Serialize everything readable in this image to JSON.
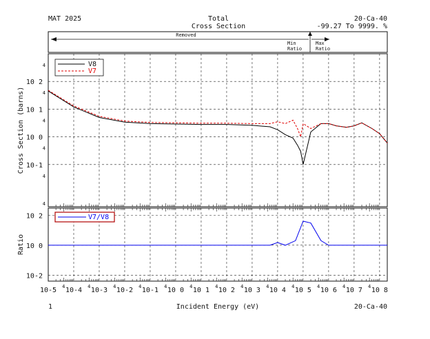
{
  "header": {
    "mat": "MAT 2025",
    "title_line1": "Total",
    "title_line2": "Cross Section",
    "nuclide": "20-Ca-40",
    "range": "-99.27 To 9999. %",
    "removed_label": "Removed",
    "min_ratio_label": [
      "Min",
      "Ratio"
    ],
    "max_ratio_label": [
      "Max",
      "Ratio"
    ]
  },
  "footer": {
    "page_number": "1",
    "xlabel": "Incident Energy (eV)",
    "nuclide": "20-Ca-40"
  },
  "colors": {
    "v8": "#000000",
    "v7": "#e00000",
    "ratio": "#0000ee"
  },
  "chart_data": [
    {
      "type": "line",
      "name": "cross-section",
      "xscale": "log",
      "yscale": "log",
      "xlim": [
        1e-05,
        200000000.0
      ],
      "ylim": [
        0.003,
        1000
      ],
      "ylabel": "Cross Section (barns)",
      "xticks": [
        "10-5",
        "10-4",
        "10-3",
        "10-2",
        "10-1",
        "10 0",
        "10 1",
        "10 2",
        "10 3",
        "10 4",
        "10 5",
        "10 6",
        "10 7",
        "10 8"
      ],
      "yticks": [
        "10 2",
        "10 1",
        "10 0",
        "10-1"
      ],
      "minor_tick_label": "4",
      "legend": {
        "position": "top-left",
        "entries": [
          {
            "name": "V8",
            "style": "solid"
          },
          {
            "name": "V7",
            "style": "dashed"
          }
        ]
      },
      "series": [
        {
          "name": "V8",
          "x": [
            1e-05,
            0.0001,
            0.001,
            0.01,
            0.1,
            1,
            10,
            100,
            1000,
            5000,
            10000,
            20000,
            40000,
            60000,
            80000,
            100000,
            200000,
            500000,
            1000000,
            2000000,
            5000000,
            10000000,
            20000000,
            50000000,
            100000000,
            200000000
          ],
          "y": [
            45,
            12,
            5,
            3.4,
            3.0,
            2.9,
            2.8,
            2.8,
            2.6,
            2.3,
            1.8,
            1.2,
            0.9,
            0.5,
            0.3,
            0.1,
            1.5,
            3,
            3,
            2.5,
            2.2,
            2.5,
            3.2,
            2,
            1.3,
            0.6
          ]
        },
        {
          "name": "V7",
          "x": [
            1e-05,
            0.0001,
            0.001,
            0.01,
            0.1,
            1,
            10,
            100,
            1000,
            5000,
            10000,
            20000,
            40000,
            60000,
            80000,
            100000,
            200000,
            500000,
            1000000,
            2000000,
            5000000,
            10000000,
            20000000,
            50000000,
            100000000,
            200000000
          ],
          "y": [
            48,
            13,
            5.5,
            3.7,
            3.3,
            3.2,
            3.1,
            3.1,
            3.0,
            3.0,
            3.5,
            3,
            4,
            2,
            1,
            3,
            2,
            3,
            3,
            2.5,
            2.2,
            2.5,
            3.2,
            2,
            1.3,
            0.6
          ]
        }
      ]
    },
    {
      "type": "line",
      "name": "ratio",
      "xscale": "log",
      "yscale": "log",
      "xlim": [
        1e-05,
        200000000.0
      ],
      "ylim": [
        0.004,
        300
      ],
      "ylabel": "Ratio",
      "yticks": [
        "10 2",
        "10 0",
        "10-2"
      ],
      "legend": {
        "position": "top-left",
        "entries": [
          {
            "name": "V7/V8",
            "style": "solid"
          }
        ]
      },
      "series": [
        {
          "name": "V7/V8",
          "x": [
            1e-05,
            1000,
            5000,
            10000,
            20000,
            50000,
            100000,
            200000,
            500000,
            1000000,
            2000000,
            10000000,
            100000000,
            200000000
          ],
          "y": [
            1,
            1,
            1,
            1.5,
            1,
            2,
            40,
            30,
            2,
            1,
            1,
            1,
            1,
            1
          ]
        }
      ]
    }
  ]
}
